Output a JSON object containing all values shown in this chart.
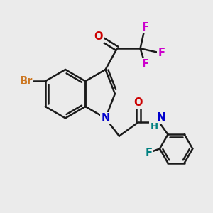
{
  "background_color": "#ebebeb",
  "bond_color": "#1a1a1a",
  "bond_width": 1.8,
  "atoms": {
    "Br": {
      "color": "#cc7722",
      "fontsize": 10.5
    },
    "O": {
      "color": "#cc0000",
      "fontsize": 10.5
    },
    "N": {
      "color": "#0000cc",
      "fontsize": 10.5
    },
    "F": {
      "color": "#cc00cc",
      "fontsize": 10.5
    },
    "F2": {
      "color": "#008080",
      "fontsize": 10.5
    },
    "H": {
      "color": "#008080",
      "fontsize": 9.5
    }
  },
  "figsize": [
    3.0,
    3.0
  ],
  "dpi": 100
}
